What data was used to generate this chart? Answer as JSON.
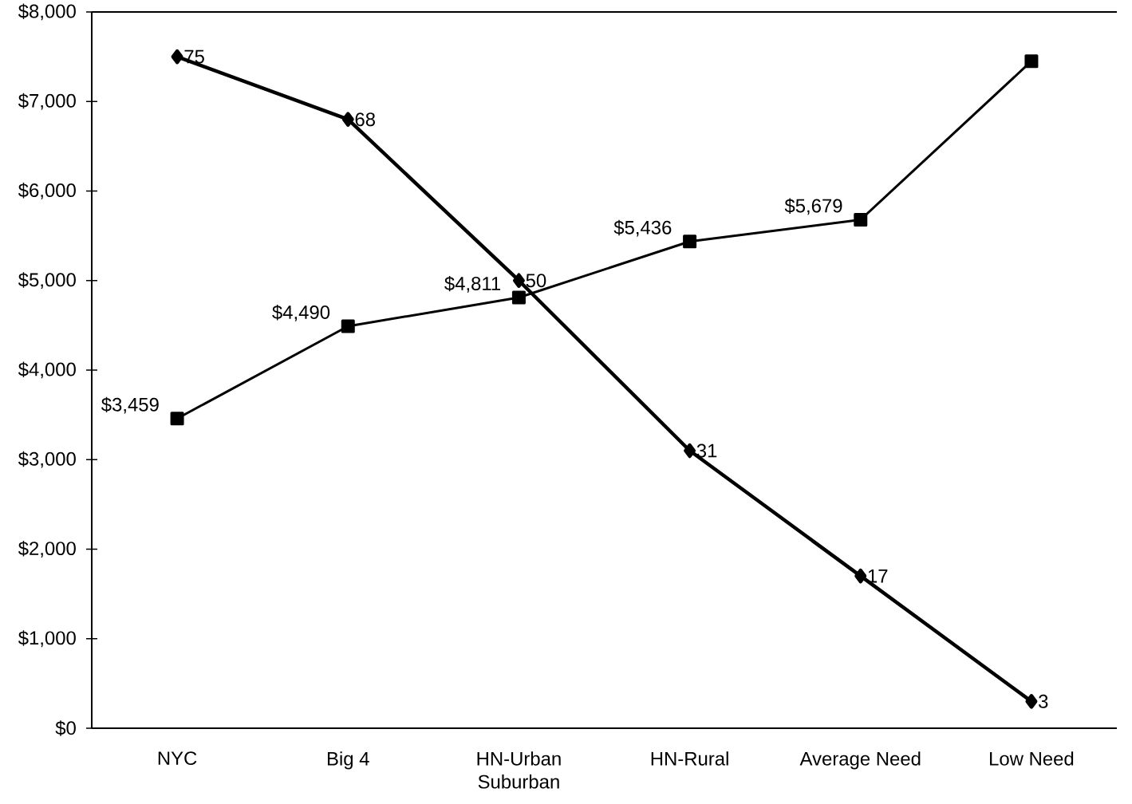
{
  "chart_data": {
    "type": "line",
    "categories": [
      "NYC",
      "Big 4",
      "HN-Urban Suburban",
      "HN-Rural",
      "Average Need",
      "Low Need"
    ],
    "ylim": [
      0,
      8000
    ],
    "yticks": [
      {
        "value": 0,
        "label": "$0"
      },
      {
        "value": 1000,
        "label": "$1,000"
      },
      {
        "value": 2000,
        "label": "$2,000"
      },
      {
        "value": 3000,
        "label": "$3,000"
      },
      {
        "value": 4000,
        "label": "$4,000"
      },
      {
        "value": 5000,
        "label": "$5,000"
      },
      {
        "value": 6000,
        "label": "$6,000"
      },
      {
        "value": 7000,
        "label": "$7,000"
      },
      {
        "value": 8000,
        "label": "$8,000"
      }
    ],
    "y2lim": [
      0,
      80
    ],
    "grid": false,
    "line_style": "solid",
    "series": [
      {
        "color": "#000000",
        "marker": "diamond",
        "axis": "y2",
        "values": [
          75,
          68,
          50,
          31,
          17,
          3
        ],
        "value_labels": [
          "75",
          "68",
          "50",
          "31",
          "17",
          "3"
        ]
      },
      {
        "color": "#000000",
        "marker": "square",
        "values": [
          3459,
          4490,
          4811,
          5436,
          5679,
          7450
        ],
        "value_labels": [
          "$3,459",
          "$4,490",
          "$4,811",
          "$5,436",
          "$5,679",
          null
        ]
      }
    ]
  }
}
